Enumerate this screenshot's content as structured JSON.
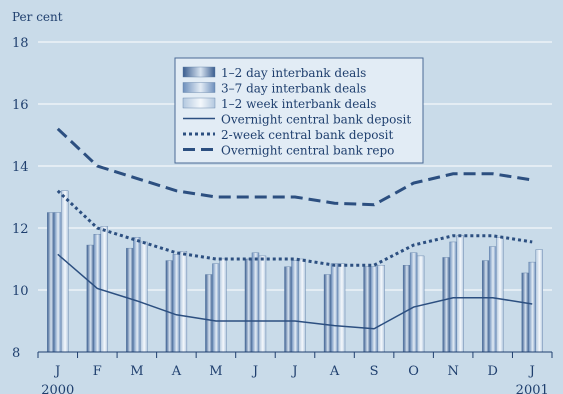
{
  "chart_data": {
    "type": "bar",
    "ylabel": "Per cent",
    "ylim": [
      8,
      18
    ],
    "yticks": [
      8,
      10,
      12,
      14,
      16,
      18
    ],
    "categories": [
      "J",
      "F",
      "M",
      "A",
      "M",
      "J",
      "J",
      "A",
      "S",
      "O",
      "N",
      "D",
      "J"
    ],
    "year_labels": [
      {
        "index": 0,
        "label": "2000"
      },
      {
        "index": 12,
        "label": "2001"
      }
    ],
    "legend_placement": "top-center",
    "grid": {
      "horizontal": true,
      "vertical": false
    },
    "bar_series": [
      {
        "name": "1–2 day interbank deals",
        "values": [
          12.5,
          11.45,
          11.35,
          10.95,
          10.5,
          11.0,
          10.75,
          10.5,
          10.75,
          10.8,
          11.05,
          10.95,
          10.55
        ]
      },
      {
        "name": "3–7 day interbank deals",
        "values": [
          12.5,
          11.8,
          11.7,
          11.15,
          10.85,
          11.2,
          10.95,
          10.85,
          10.75,
          11.2,
          11.55,
          11.4,
          10.9
        ]
      },
      {
        "name": "1–2 week interbank deals",
        "values": [
          13.2,
          12.05,
          11.55,
          11.25,
          11.0,
          11.1,
          11.0,
          10.85,
          10.8,
          11.1,
          11.75,
          11.7,
          11.3
        ]
      }
    ],
    "line_series": [
      {
        "name": "Overnight central bank deposit",
        "style": "solid",
        "values": [
          11.15,
          10.05,
          9.65,
          9.2,
          9.0,
          9.0,
          9.0,
          8.85,
          8.75,
          9.45,
          9.75,
          9.75,
          9.55
        ]
      },
      {
        "name": "2-week central bank deposit",
        "style": "dotted",
        "values": [
          13.2,
          12.0,
          11.6,
          11.2,
          11.0,
          11.0,
          11.0,
          10.8,
          10.8,
          11.45,
          11.75,
          11.75,
          11.55
        ]
      },
      {
        "name": "Overnight central bank repo",
        "style": "dashed",
        "values": [
          15.2,
          14.0,
          13.6,
          13.2,
          13.0,
          13.0,
          13.0,
          12.8,
          12.75,
          13.45,
          13.75,
          13.75,
          13.55
        ]
      }
    ],
    "colors": {
      "background": "#c9dbe9",
      "text": "#1f3f6e",
      "grid": "#ffffff",
      "line": "#2c4f80",
      "bar1_dark": "#3a5d8f",
      "bar1_light": "#d7e3f0",
      "bar2_dark": "#6d8fbc",
      "bar2_light": "#e3ecf5",
      "bar3_dark": "#b3c8df",
      "bar3_light": "#f4f8fc",
      "legend_bg": "#e2ecf5",
      "legend_border": "#4a6a95"
    }
  }
}
